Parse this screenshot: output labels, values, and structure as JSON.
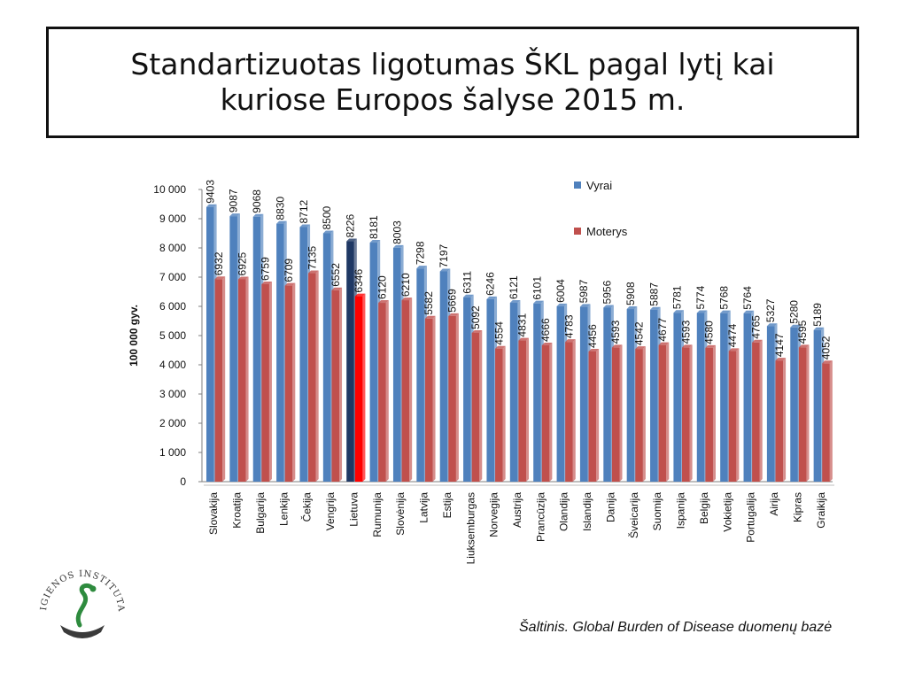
{
  "header": {
    "title_line1": "Standartizuotas ligotumas ŠKL pagal lytį kai",
    "title_line2": "kuriose Europos šalyse 2015 m."
  },
  "source": "Šaltinis. Global Burden of Disease duomenų bazė",
  "logo": {
    "text": "HIGIENOS INSTITUTAS",
    "icon": "higienos-institutas-logo"
  },
  "colors": {
    "vyrai": "#4F81BD",
    "moterys": "#C0504D",
    "highlight_vyrai": "#1F3864",
    "highlight_moterys": "#FF0000"
  },
  "chart_data": {
    "type": "bar",
    "title": "",
    "xlabel": "",
    "ylabel": "100 000 gyv.",
    "ylim": [
      0,
      10000
    ],
    "yticks": [
      "0",
      "1 000",
      "2 000",
      "3 000",
      "4 000",
      "5 000",
      "6 000",
      "7 000",
      "8 000",
      "9 000",
      "10 000"
    ],
    "grid": false,
    "legend": "top-right",
    "highlight_category": "Lietuva",
    "categories": [
      "Slovakija",
      "Kroatija",
      "Bulgarija",
      "Lenkija",
      "Čekija",
      "Vengrija",
      "Lietuva",
      "Rumunija",
      "Slovėnija",
      "Latvija",
      "Estija",
      "Liuksemburgas",
      "Norvegija",
      "Austrija",
      "Prancūzija",
      "Olandija",
      "Islandija",
      "Danija",
      "Šveicarija",
      "Suomija",
      "Ispanija",
      "Belgija",
      "Vokietija",
      "Portugalija",
      "Airija",
      "Kipras",
      "Graikija"
    ],
    "series": [
      {
        "name": "Vyrai",
        "values": [
          9403,
          9087,
          9068,
          8830,
          8712,
          8500,
          8226,
          8181,
          8003,
          7298,
          7197,
          6311,
          6246,
          6121,
          6101,
          6004,
          5987,
          5956,
          5908,
          5887,
          5781,
          5774,
          5768,
          5764,
          5327,
          5280,
          5189
        ]
      },
      {
        "name": "Moterys",
        "values": [
          6932,
          6925,
          6759,
          6709,
          7135,
          6552,
          6346,
          6120,
          6210,
          5582,
          5669,
          5092,
          4554,
          4831,
          4666,
          4783,
          4456,
          4593,
          4542,
          4677,
          4593,
          4580,
          4474,
          4765,
          4147,
          4595,
          4052
        ]
      }
    ]
  }
}
